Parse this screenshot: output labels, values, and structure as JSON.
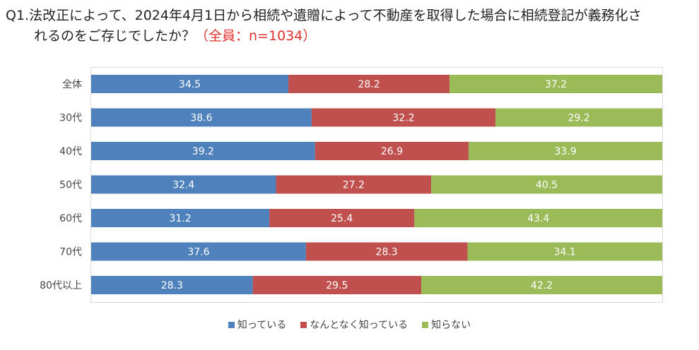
{
  "title": {
    "line1": "Q1.法改正によって、2024年4月1日から相続や遺贈によって不動産を取得した場合に相続登記が義務化さ",
    "line2": "れるのをご存じでしたか？",
    "count": "（全員：n=1034）"
  },
  "chart_data": {
    "type": "bar",
    "orientation": "horizontal-stacked-100",
    "categories": [
      "全体",
      "30代",
      "40代",
      "50代",
      "60代",
      "70代",
      "80代以上"
    ],
    "series": [
      {
        "name": "知っている",
        "color": "#4f81bd",
        "values": [
          34.5,
          38.6,
          39.2,
          32.4,
          31.2,
          37.6,
          28.3
        ]
      },
      {
        "name": "なんとなく知っている",
        "color": "#c0504d",
        "values": [
          28.2,
          32.2,
          26.9,
          27.2,
          25.4,
          28.3,
          29.5
        ]
      },
      {
        "name": "知らない",
        "color": "#9bbb59",
        "values": [
          37.2,
          29.2,
          33.9,
          40.5,
          43.4,
          34.1,
          42.2
        ]
      }
    ],
    "xlim": [
      0,
      100
    ],
    "legend_position": "bottom"
  }
}
